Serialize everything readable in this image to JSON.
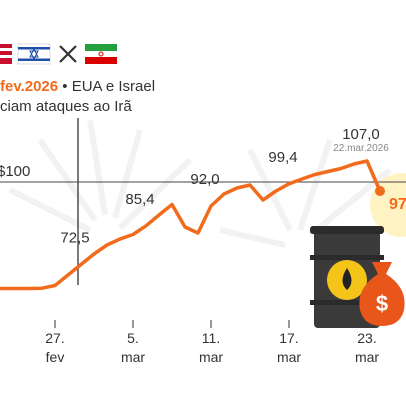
{
  "chart_data": {
    "type": "line",
    "categories": [
      null,
      null,
      null,
      null,
      null,
      "27. fev",
      null,
      null,
      null,
      null,
      null,
      "5. mar",
      null,
      null,
      null,
      null,
      null,
      "11. mar",
      null,
      null,
      null,
      null,
      null,
      "17. mar",
      null,
      null,
      null,
      null,
      null,
      "23. mar",
      null
    ],
    "series": [
      {
        "name": null,
        "color": "#f26b1d",
        "values": [
          64.5,
          64.5,
          64.5,
          64.5,
          64.6,
          65.5,
          69,
          72.5,
          76,
          79,
          81,
          82.5,
          85.4,
          89,
          92.5,
          85,
          83,
          92.0,
          96,
          98,
          99,
          94,
          97,
          99.4,
          101,
          102.5,
          103.5,
          104.5,
          106,
          107.0,
          97
        ],
        "value_labels": [
          null,
          null,
          null,
          null,
          null,
          null,
          null,
          "72,5",
          null,
          null,
          null,
          null,
          "85,4",
          null,
          null,
          null,
          null,
          "92,0",
          null,
          null,
          null,
          null,
          null,
          "99,4",
          null,
          null,
          null,
          null,
          null,
          "107,0",
          "97"
        ]
      }
    ],
    "ylim": [
      60,
      115
    ],
    "reference_line": {
      "value": 100,
      "label": "$100"
    },
    "peak_date": "22.mar.2026",
    "annotation": {
      "date": "fev.2026",
      "text": "• EUA e Israel",
      "text_line2": "ciam ataques ao Irã"
    }
  }
}
